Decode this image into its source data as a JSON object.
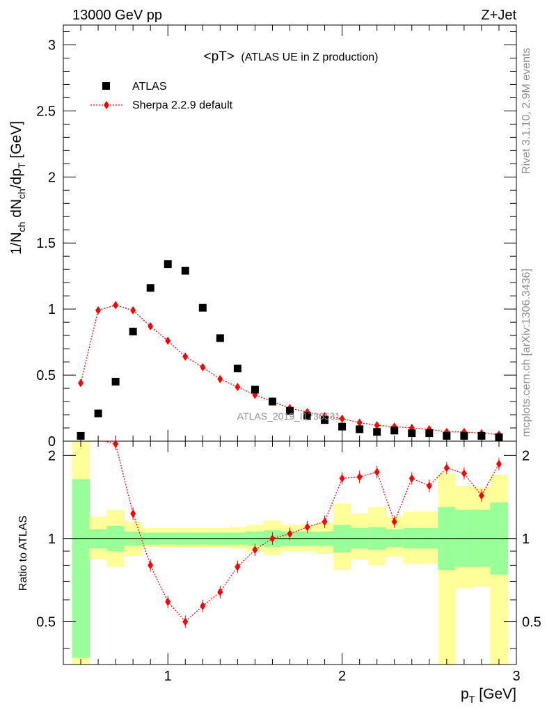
{
  "header": {
    "left": "13000 GeV pp",
    "right": "Z+Jet"
  },
  "side_labels": {
    "rivet": "Rivet 3.1.10,  2.9M events",
    "mcplots": "mcplots.cern.ch [arXiv:1306.3436]"
  },
  "colors": {
    "data": "#000000",
    "mc": "#ff0000",
    "band_inner": "#99ff99",
    "band_outer": "#ffff99"
  },
  "chart_data": [
    {
      "type": "scatter",
      "title": "<pT> (ATLAS UE in Z production)",
      "title_main": "<pT>",
      "title_sub": "(ATLAS UE in Z production)",
      "xlabel": "p_T [GeV]",
      "xlabel_main": "p",
      "xlabel_sub": "T",
      "xlabel_unit": "[GeV]",
      "ylabel": "1/N_ch dN_ch/dp_T [GeV]",
      "ylabel_parts": [
        "1/N",
        "ch",
        " dN",
        "ch",
        "/dp",
        "T",
        " [GeV]"
      ],
      "xlim": [
        0.4,
        3.0
      ],
      "ylim": [
        0,
        3.15
      ],
      "yticks": [
        "0",
        "0.5",
        "1",
        "1.5",
        "2",
        "2.5",
        "3"
      ],
      "ytick_values": [
        0,
        0.5,
        1,
        1.5,
        2,
        2.5,
        3
      ],
      "watermark": "ATLAS_2019_I1736531",
      "legend": {
        "position": "top-left",
        "entries": [
          "ATLAS",
          "Sherpa 2.2.9 default"
        ]
      },
      "x": [
        0.5,
        0.6,
        0.7,
        0.8,
        0.9,
        1.0,
        1.1,
        1.2,
        1.3,
        1.4,
        1.5,
        1.6,
        1.7,
        1.8,
        1.9,
        2.0,
        2.1,
        2.2,
        2.3,
        2.4,
        2.5,
        2.6,
        2.7,
        2.8,
        2.9
      ],
      "series": [
        {
          "name": "ATLAS",
          "values": [
            0.04,
            0.21,
            0.45,
            0.83,
            1.16,
            1.34,
            1.29,
            1.01,
            0.78,
            0.55,
            0.39,
            0.3,
            0.23,
            0.19,
            0.16,
            0.11,
            0.09,
            0.07,
            0.08,
            0.06,
            0.06,
            0.04,
            0.04,
            0.04,
            0.03
          ]
        },
        {
          "name": "Sherpa 2.2.9 default",
          "values": [
            0.44,
            0.99,
            1.03,
            0.99,
            0.87,
            0.76,
            0.64,
            0.56,
            0.47,
            0.41,
            0.35,
            0.3,
            0.25,
            0.22,
            0.19,
            0.17,
            0.14,
            0.12,
            0.11,
            0.1,
            0.09,
            0.07,
            0.07,
            0.06,
            0.05
          ]
        }
      ]
    },
    {
      "type": "line",
      "ylabel": "Ratio to ATLAS",
      "xlim": [
        0.4,
        3.0
      ],
      "ylim": [
        0.35,
        2.25
      ],
      "xticks": [
        "1",
        "2",
        "3"
      ],
      "xtick_values": [
        1,
        2,
        3
      ],
      "yticks": [
        "0.5",
        "1",
        "2"
      ],
      "ytick_values": [
        0.5,
        1,
        2
      ],
      "x": [
        0.5,
        0.6,
        0.7,
        0.8,
        0.9,
        1.0,
        1.1,
        1.2,
        1.3,
        1.4,
        1.5,
        1.6,
        1.7,
        1.8,
        1.9,
        2.0,
        2.1,
        2.2,
        2.3,
        2.4,
        2.5,
        2.6,
        2.7,
        2.8,
        2.9
      ],
      "bin_edges": [
        0.45,
        0.55,
        0.65,
        0.75,
        0.85,
        0.95,
        1.05,
        1.15,
        1.25,
        1.35,
        1.45,
        1.55,
        1.65,
        1.75,
        1.85,
        1.95,
        2.05,
        2.15,
        2.25,
        2.35,
        2.45,
        2.55,
        2.65,
        2.75,
        2.85,
        2.95
      ],
      "band_inner": {
        "lower": [
          0.37,
          0.92,
          0.9,
          0.94,
          0.95,
          0.95,
          0.95,
          0.95,
          0.95,
          0.95,
          0.94,
          0.93,
          0.94,
          0.94,
          0.94,
          0.89,
          0.92,
          0.91,
          0.93,
          0.92,
          0.92,
          0.77,
          0.79,
          0.79,
          0.74
        ],
        "upper": [
          1.64,
          1.08,
          1.11,
          1.06,
          1.05,
          1.05,
          1.05,
          1.05,
          1.05,
          1.05,
          1.06,
          1.07,
          1.06,
          1.06,
          1.06,
          1.12,
          1.09,
          1.1,
          1.08,
          1.09,
          1.09,
          1.3,
          1.27,
          1.27,
          1.35
        ]
      },
      "band_outer": {
        "lower": [
          0.35,
          0.84,
          0.79,
          0.87,
          0.93,
          0.93,
          0.93,
          0.93,
          0.93,
          0.92,
          0.9,
          0.87,
          0.9,
          0.9,
          0.88,
          0.77,
          0.84,
          0.8,
          0.86,
          0.81,
          0.81,
          0.35,
          0.66,
          0.67,
          0.35
        ],
        "upper": [
          2.25,
          1.2,
          1.27,
          1.15,
          1.09,
          1.09,
          1.09,
          1.09,
          1.09,
          1.1,
          1.12,
          1.16,
          1.12,
          1.12,
          1.14,
          1.34,
          1.23,
          1.3,
          1.2,
          1.25,
          1.25,
          1.72,
          1.55,
          1.53,
          1.7
        ]
      },
      "series": [
        {
          "name": "Sherpa 2.2.9 default / ATLAS",
          "values": [
            null,
            null,
            2.2,
            1.23,
            0.8,
            0.59,
            0.5,
            0.57,
            0.64,
            0.79,
            0.91,
            1.0,
            1.04,
            1.1,
            1.15,
            1.65,
            1.67,
            1.74,
            1.15,
            1.65,
            1.55,
            1.8,
            1.72,
            1.43,
            1.86
          ]
        }
      ]
    }
  ]
}
